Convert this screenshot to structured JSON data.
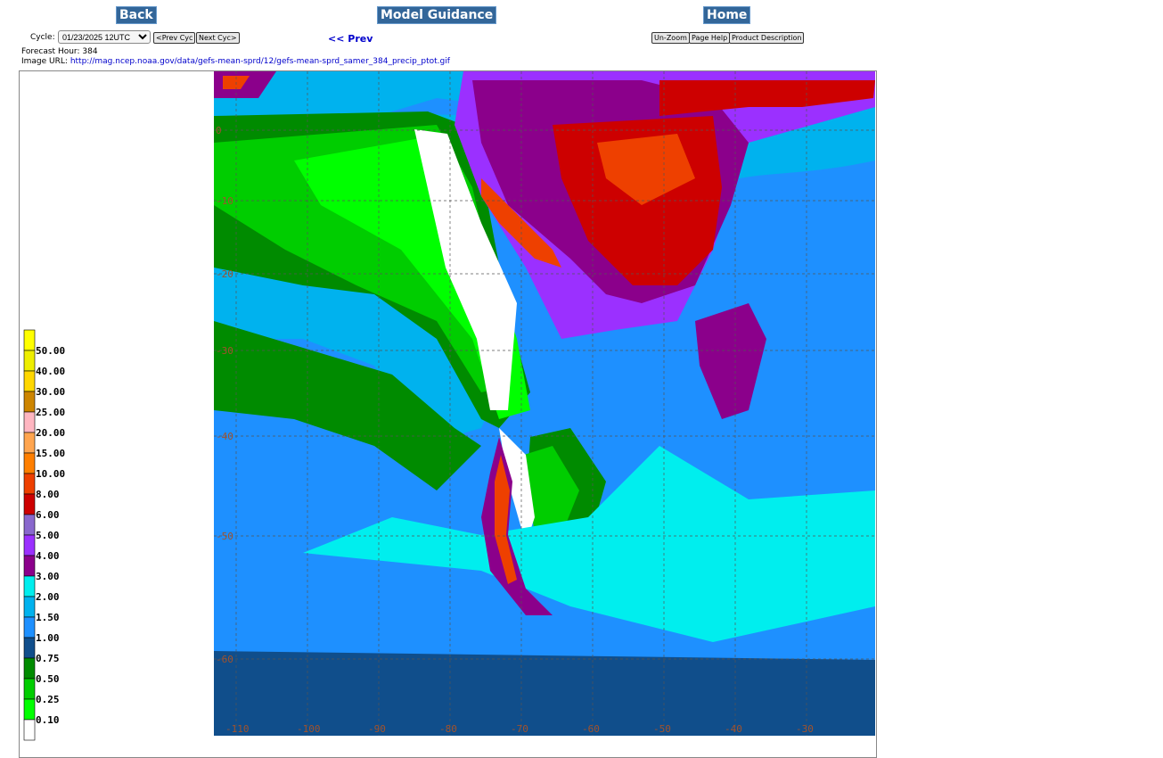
{
  "nav": {
    "back": "Back",
    "title": "Model Guidance",
    "home": "Home",
    "prev": "<< Prev"
  },
  "cycle": {
    "label": "Cycle:",
    "value": "01/23/2025 12UTC",
    "prev_cyc": "<Prev Cyc",
    "next_cyc": "Next Cyc>"
  },
  "tools": {
    "unzoom": "Un-Zoom",
    "help": "Page Help",
    "desc": "Product Description"
  },
  "info": {
    "forecast_hour_label": "Forecast Hour:",
    "forecast_hour": "384",
    "image_url_label": "Image URL:",
    "image_url": "http://mag.ncep.noaa.gov/data/gefs-mean-sprd/12/gefs-mean-sprd_samer_384_precip_ptot.gif"
  },
  "map": {
    "lon_labels": [
      "-110",
      "-100",
      "-90",
      "-80",
      "-70",
      "-60",
      "-50",
      "-40",
      "-30"
    ],
    "lat_labels": [
      "0",
      "-10",
      "-20",
      "-30",
      "-40",
      "-50",
      "-60"
    ]
  },
  "colorbar": {
    "levels": [
      "50.00",
      "40.00",
      "30.00",
      "25.00",
      "20.00",
      "15.00",
      "10.00",
      "8.00",
      "6.00",
      "5.00",
      "4.00",
      "3.00",
      "2.00",
      "1.50",
      "1.00",
      "0.75",
      "0.50",
      "0.25",
      "0.10"
    ],
    "colors": [
      "#ffff00",
      "#eeee00",
      "#ffd700",
      "#cd8500",
      "#ffb6c1",
      "#ffa54f",
      "#ff7f00",
      "#ee4000",
      "#cd0000",
      "#8968cd",
      "#9b30ff",
      "#8b008b",
      "#00eeee",
      "#00b2ee",
      "#1e90ff",
      "#104e8b",
      "#008b00",
      "#00cd00",
      "#00ff00",
      "#ffffff"
    ]
  }
}
